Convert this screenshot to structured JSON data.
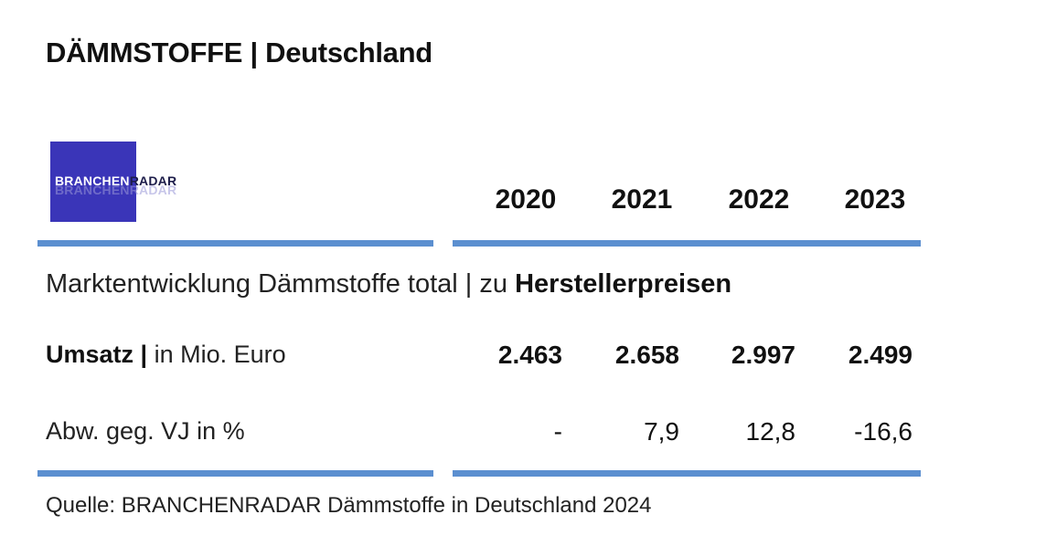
{
  "title": "DÄMMSTOFFE | Deutschland",
  "logo": {
    "text_part1": "BRANCHEN",
    "text_part2": "RADAR",
    "ghost_text": "BRANCHENRADAR",
    "background_color": "#3a35b8"
  },
  "table": {
    "years": [
      "2020",
      "2021",
      "2022",
      "2023"
    ],
    "subtitle_regular": "Marktentwicklung Dämmstoffe total | zu ",
    "subtitle_bold": "Herstellerpreisen",
    "rows": [
      {
        "label_bold": "Umsatz |",
        "label_regular": " in Mio. Euro",
        "values": [
          "2.463",
          "2.658",
          "2.997",
          "2.499"
        ]
      },
      {
        "label_bold": "",
        "label_regular": "Abw. geg. VJ in %",
        "values": [
          "-",
          "7,9",
          "12,8",
          "-16,6"
        ]
      }
    ],
    "rule_color": "#5b8fd0"
  },
  "source": "Quelle: BRANCHENRADAR Dämmstoffe in Deutschland 2024"
}
